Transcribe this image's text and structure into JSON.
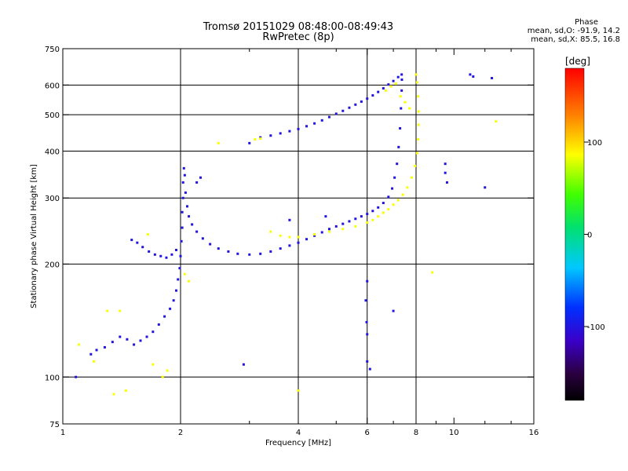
{
  "title_line1": "Tromsø 20151029 08:48:00-08:49:43",
  "title_line2": "RwPretec (8p)",
  "phase_title": "Phase",
  "phase_line1": "mean, sd,O: -91.9, 14.2",
  "phase_line2": "mean, sd,X: 85.5, 16.8",
  "colorbar": {
    "unit_label": "[deg]",
    "ticks": [
      {
        "value": 100,
        "label": "100"
      },
      {
        "value": 0,
        "label": "0"
      },
      {
        "value": -100,
        "label": "-100"
      }
    ],
    "range": [
      -180,
      180
    ]
  },
  "chart_data": {
    "type": "scatter",
    "title": "Tromsø 20151029 08:48:00-08:49:43",
    "subtitle": "RwPretec (8p)",
    "xlabel": "Frequency [MHz]",
    "ylabel": "Stationary phase Virtual Height [km]",
    "xscale": "log2",
    "yscale": "log",
    "xlim": [
      1,
      16
    ],
    "ylim": [
      75,
      750
    ],
    "x_ticks": [
      {
        "value": 1,
        "label": "1"
      },
      {
        "value": 2,
        "label": "2"
      },
      {
        "value": 4,
        "label": "4"
      },
      {
        "value": 6,
        "label": "6"
      },
      {
        "value": 8,
        "label": "8"
      },
      {
        "value": 10,
        "label": "10"
      },
      {
        "value": 16,
        "label": "16"
      }
    ],
    "x_minor": [
      3,
      5,
      7,
      9,
      12,
      14
    ],
    "y_ticks": [
      {
        "value": 75,
        "label": "75"
      },
      {
        "value": 100,
        "label": "100"
      },
      {
        "value": 200,
        "label": "200"
      },
      {
        "value": 300,
        "label": "300"
      },
      {
        "value": 400,
        "label": "400"
      },
      {
        "value": 500,
        "label": "500"
      },
      {
        "value": 600,
        "label": "600"
      },
      {
        "value": 750,
        "label": "750"
      }
    ],
    "grid_x": [
      2,
      4,
      6,
      8
    ],
    "grid_y": [
      100,
      200,
      300,
      400,
      500,
      600
    ],
    "series": [
      {
        "mode": "O",
        "color_phase": -100,
        "points": [
          [
            1.18,
            115
          ],
          [
            1.22,
            118
          ],
          [
            1.28,
            120
          ],
          [
            1.34,
            124
          ],
          [
            1.4,
            128
          ],
          [
            1.46,
            126
          ],
          [
            1.52,
            122
          ],
          [
            1.58,
            125
          ],
          [
            1.64,
            128
          ],
          [
            1.7,
            132
          ],
          [
            1.76,
            138
          ],
          [
            1.82,
            145
          ],
          [
            1.88,
            152
          ],
          [
            1.92,
            160
          ],
          [
            1.95,
            170
          ],
          [
            1.97,
            182
          ],
          [
            1.99,
            195
          ],
          [
            2.0,
            210
          ],
          [
            2.01,
            230
          ],
          [
            2.02,
            250
          ],
          [
            2.02,
            275
          ],
          [
            2.03,
            300
          ],
          [
            2.03,
            330
          ],
          [
            2.04,
            360
          ],
          [
            2.05,
            345
          ],
          [
            2.06,
            310
          ],
          [
            2.08,
            285
          ],
          [
            2.1,
            268
          ],
          [
            2.14,
            255
          ],
          [
            2.2,
            244
          ],
          [
            2.28,
            234
          ],
          [
            2.38,
            226
          ],
          [
            2.5,
            220
          ],
          [
            2.65,
            216
          ],
          [
            2.8,
            213
          ],
          [
            3.0,
            212
          ],
          [
            3.2,
            213
          ],
          [
            3.4,
            216
          ],
          [
            3.6,
            220
          ],
          [
            3.8,
            224
          ],
          [
            4.0,
            228
          ],
          [
            4.2,
            233
          ],
          [
            4.4,
            238
          ],
          [
            4.6,
            243
          ],
          [
            4.8,
            248
          ],
          [
            5.0,
            252
          ],
          [
            5.2,
            256
          ],
          [
            5.4,
            260
          ],
          [
            5.6,
            264
          ],
          [
            5.8,
            268
          ],
          [
            6.0,
            272
          ],
          [
            6.2,
            277
          ],
          [
            6.4,
            283
          ],
          [
            6.6,
            291
          ],
          [
            6.8,
            302
          ],
          [
            6.95,
            318
          ],
          [
            7.05,
            340
          ],
          [
            7.15,
            370
          ],
          [
            7.22,
            410
          ],
          [
            7.28,
            460
          ],
          [
            7.32,
            520
          ],
          [
            7.35,
            580
          ],
          [
            7.36,
            620
          ],
          [
            1.5,
            232
          ],
          [
            1.55,
            228
          ],
          [
            1.6,
            222
          ],
          [
            1.66,
            216
          ],
          [
            1.72,
            212
          ],
          [
            1.78,
            210
          ],
          [
            1.84,
            208
          ],
          [
            1.9,
            212
          ],
          [
            1.95,
            218
          ],
          [
            2.2,
            330
          ],
          [
            2.25,
            340
          ],
          [
            3.0,
            420
          ],
          [
            3.2,
            435
          ],
          [
            3.4,
            440
          ],
          [
            3.6,
            446
          ],
          [
            3.8,
            452
          ],
          [
            4.0,
            458
          ],
          [
            4.2,
            466
          ],
          [
            4.4,
            474
          ],
          [
            4.6,
            483
          ],
          [
            4.8,
            493
          ],
          [
            5.0,
            503
          ],
          [
            5.2,
            512
          ],
          [
            5.4,
            522
          ],
          [
            5.6,
            532
          ],
          [
            5.8,
            542
          ],
          [
            6.0,
            552
          ],
          [
            6.2,
            563
          ],
          [
            6.4,
            575
          ],
          [
            6.6,
            588
          ],
          [
            6.8,
            602
          ],
          [
            7.0,
            615
          ],
          [
            7.2,
            630
          ],
          [
            7.35,
            640
          ],
          [
            11.0,
            640
          ],
          [
            11.2,
            632
          ],
          [
            12.5,
            626
          ],
          [
            12.0,
            320
          ],
          [
            9.5,
            370
          ],
          [
            9.5,
            350
          ],
          [
            9.6,
            330
          ],
          [
            6.0,
            180
          ],
          [
            5.95,
            160
          ],
          [
            5.98,
            140
          ],
          [
            6.0,
            130
          ],
          [
            6.0,
            110
          ],
          [
            6.1,
            105
          ],
          [
            7.0,
            150
          ],
          [
            4.7,
            268
          ],
          [
            3.8,
            262
          ],
          [
            2.9,
            108
          ],
          [
            1.08,
            100
          ]
        ]
      },
      {
        "mode": "X",
        "color_phase": 85,
        "points": [
          [
            3.4,
            244
          ],
          [
            3.6,
            238
          ],
          [
            3.8,
            236
          ],
          [
            4.0,
            236
          ],
          [
            4.4,
            240
          ],
          [
            4.8,
            244
          ],
          [
            5.2,
            248
          ],
          [
            5.6,
            252
          ],
          [
            6.0,
            258
          ],
          [
            6.2,
            262
          ],
          [
            6.4,
            268
          ],
          [
            6.6,
            274
          ],
          [
            6.8,
            280
          ],
          [
            7.0,
            288
          ],
          [
            7.2,
            296
          ],
          [
            7.4,
            306
          ],
          [
            7.6,
            320
          ],
          [
            7.8,
            340
          ],
          [
            7.95,
            365
          ],
          [
            8.05,
            395
          ],
          [
            8.1,
            430
          ],
          [
            8.12,
            470
          ],
          [
            8.12,
            510
          ],
          [
            8.1,
            560
          ],
          [
            8.05,
            610
          ],
          [
            8.0,
            640
          ],
          [
            6.7,
            580
          ],
          [
            6.9,
            595
          ],
          [
            7.1,
            605
          ],
          [
            7.3,
            560
          ],
          [
            7.5,
            540
          ],
          [
            7.7,
            520
          ],
          [
            3.2,
            432
          ],
          [
            3.1,
            430
          ],
          [
            2.5,
            420
          ],
          [
            12.8,
            480
          ],
          [
            8.8,
            190
          ],
          [
            4.0,
            92
          ],
          [
            1.45,
            92
          ],
          [
            1.35,
            90
          ],
          [
            1.4,
            150
          ],
          [
            1.3,
            150
          ],
          [
            1.2,
            110
          ],
          [
            1.1,
            122
          ],
          [
            1.7,
            108
          ],
          [
            1.8,
            100
          ],
          [
            1.85,
            104
          ],
          [
            2.05,
            188
          ],
          [
            1.65,
            240
          ],
          [
            2.1,
            180
          ]
        ]
      }
    ]
  }
}
